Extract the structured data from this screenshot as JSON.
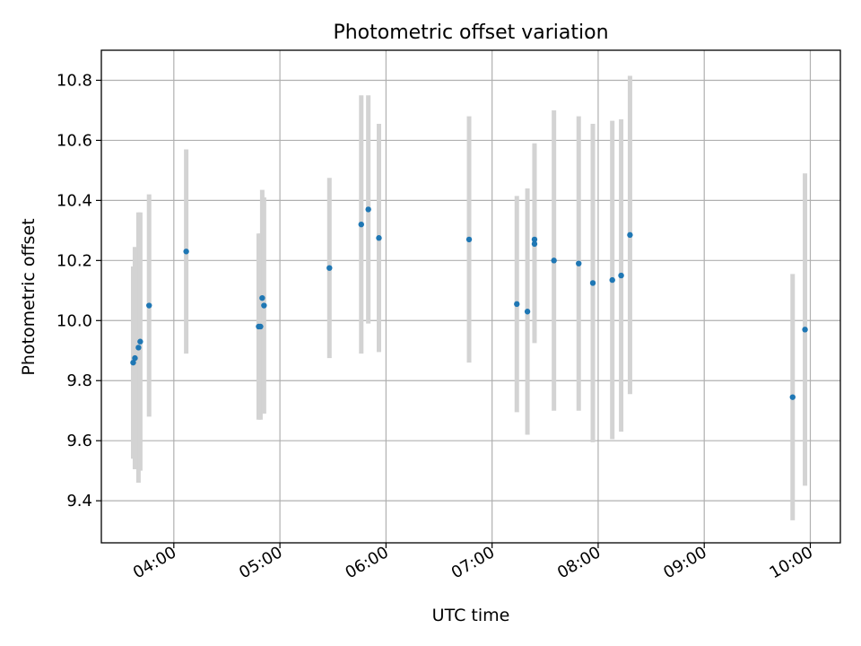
{
  "chart_data": {
    "type": "scatter",
    "title": "Photometric offset variation",
    "xlabel": "UTC time",
    "ylabel": "Photometric offset",
    "x_tick_labels": [
      "04:00",
      "05:00",
      "06:00",
      "07:00",
      "08:00",
      "09:00",
      "10:00"
    ],
    "x_tick_minutes": [
      240,
      300,
      360,
      420,
      480,
      540,
      600
    ],
    "y_ticks": [
      9.4,
      9.6,
      9.8,
      10.0,
      10.2,
      10.4,
      10.6,
      10.8
    ],
    "xlim": [
      "03:19",
      "10:17"
    ],
    "ylim": [
      9.26,
      10.9
    ],
    "grid": true,
    "marker_color": "#1f77b4",
    "errorbar_color": "#d3d3d3",
    "points": [
      {
        "x": "03:37",
        "y": 9.86,
        "yerr": 0.32
      },
      {
        "x": "03:38",
        "y": 9.875,
        "yerr": 0.37
      },
      {
        "x": "03:40",
        "y": 9.91,
        "yerr": 0.45
      },
      {
        "x": "03:41",
        "y": 9.93,
        "yerr": 0.43
      },
      {
        "x": "03:46",
        "y": 10.05,
        "yerr": 0.37
      },
      {
        "x": "04:07",
        "y": 10.23,
        "yerr": 0.34
      },
      {
        "x": "04:48",
        "y": 9.98,
        "yerr": 0.31
      },
      {
        "x": "04:49",
        "y": 9.98,
        "yerr": 0.31
      },
      {
        "x": "04:50",
        "y": 10.075,
        "yerr": 0.36
      },
      {
        "x": "04:51",
        "y": 10.05,
        "yerr": 0.36
      },
      {
        "x": "05:28",
        "y": 10.175,
        "yerr": 0.3
      },
      {
        "x": "05:46",
        "y": 10.32,
        "yerr": 0.43
      },
      {
        "x": "05:50",
        "y": 10.37,
        "yerr": 0.38
      },
      {
        "x": "05:56",
        "y": 10.275,
        "yerr": 0.38
      },
      {
        "x": "06:47",
        "y": 10.27,
        "yerr": 0.41
      },
      {
        "x": "07:14",
        "y": 10.055,
        "yerr": 0.36
      },
      {
        "x": "07:20",
        "y": 10.03,
        "yerr": 0.41
      },
      {
        "x": "07:24",
        "y": 10.255,
        "yerr": 0.33
      },
      {
        "x": "07:24",
        "y": 10.27,
        "yerr": 0.32
      },
      {
        "x": "07:35",
        "y": 10.2,
        "yerr": 0.5
      },
      {
        "x": "07:49",
        "y": 10.19,
        "yerr": 0.49
      },
      {
        "x": "07:57",
        "y": 10.125,
        "yerr": 0.53
      },
      {
        "x": "08:08",
        "y": 10.135,
        "yerr": 0.53
      },
      {
        "x": "08:13",
        "y": 10.15,
        "yerr": 0.52
      },
      {
        "x": "08:18",
        "y": 10.285,
        "yerr": 0.53
      },
      {
        "x": "09:50",
        "y": 9.745,
        "yerr": 0.41
      },
      {
        "x": "09:57",
        "y": 9.97,
        "yerr": 0.52
      }
    ]
  }
}
